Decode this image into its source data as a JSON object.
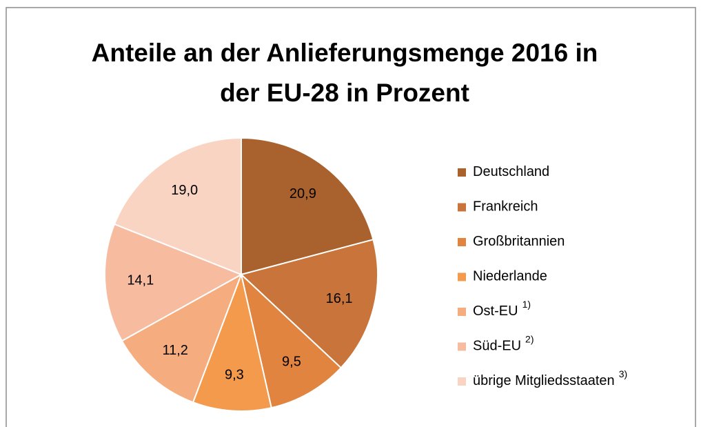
{
  "chart_data": {
    "type": "pie",
    "title": "Anteile an der Anlieferungsmenge 2016 in der EU-28 in Prozent",
    "categories": [
      "Deutschland",
      "Frankreich",
      "Großbritannien",
      "Niederlande",
      "Ost-EU",
      "Süd-EU",
      "übrige Mitgliedsstaaten"
    ],
    "category_notes": [
      null,
      null,
      null,
      null,
      "1)",
      "2)",
      "3)"
    ],
    "values": [
      20.9,
      16.1,
      9.5,
      9.3,
      11.2,
      14.1,
      19.0
    ],
    "value_labels": [
      "20,9",
      "16,1",
      "9,5",
      "9,3",
      "11,2",
      "14,1",
      "19,0"
    ],
    "colors": [
      "#a9622e",
      "#c8743a",
      "#e0843f",
      "#f39a4c",
      "#f5ad7f",
      "#f7bc9f",
      "#f9d4c2"
    ],
    "legend": "right"
  }
}
